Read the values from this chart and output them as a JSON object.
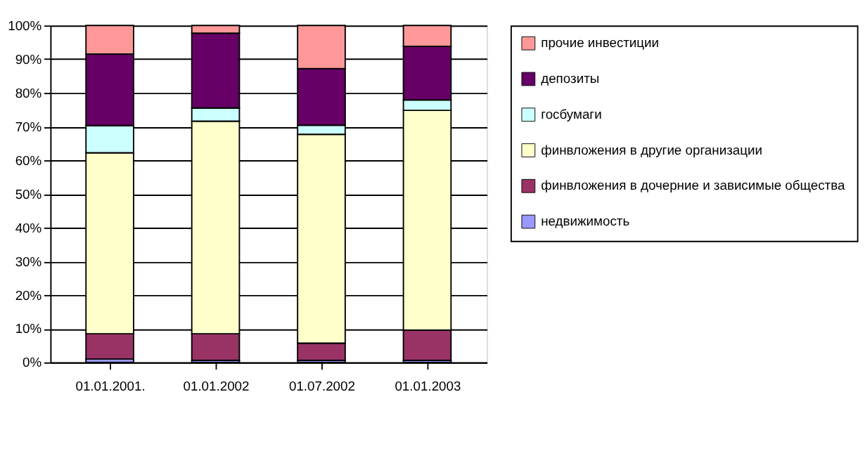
{
  "chart_data": {
    "type": "bar",
    "stacked": true,
    "categories": [
      "01.01.2001.",
      "01.01.2002",
      "01.07.2002",
      "01.01.2003"
    ],
    "series": [
      {
        "name": "недвижимость",
        "color": "#9999ff",
        "values": [
          1.0,
          0.6,
          0.6,
          0.6
        ]
      },
      {
        "name": "финвложения в дочерние и зависимые общества",
        "color": "#993366",
        "values": [
          7.5,
          7.9,
          5.1,
          9.0
        ]
      },
      {
        "name": "финвложения в другие организации",
        "color": "#ffffcc",
        "values": [
          53.7,
          63.1,
          62.0,
          65.2
        ]
      },
      {
        "name": "госбумаги",
        "color": "#ccffff",
        "values": [
          8.1,
          3.9,
          2.7,
          3.1
        ]
      },
      {
        "name": "депозиты",
        "color": "#660066",
        "values": [
          21.2,
          22.2,
          16.8,
          15.9
        ]
      },
      {
        "name": "прочие инвестиции",
        "color": "#ff9999",
        "values": [
          8.5,
          2.3,
          12.8,
          6.2
        ]
      }
    ],
    "ylim": [
      0,
      100
    ],
    "yticks": [
      {
        "value": 0,
        "label": "0%"
      },
      {
        "value": 10,
        "label": "10%"
      },
      {
        "value": 20,
        "label": "20%"
      },
      {
        "value": 30,
        "label": "30%"
      },
      {
        "value": 40,
        "label": "40%"
      },
      {
        "value": 50,
        "label": "50%"
      },
      {
        "value": 60,
        "label": "60%"
      },
      {
        "value": 70,
        "label": "70%"
      },
      {
        "value": 80,
        "label": "80%"
      },
      {
        "value": 90,
        "label": "90%"
      },
      {
        "value": 100,
        "label": "100%"
      }
    ],
    "grid": "y",
    "legend": "right"
  }
}
